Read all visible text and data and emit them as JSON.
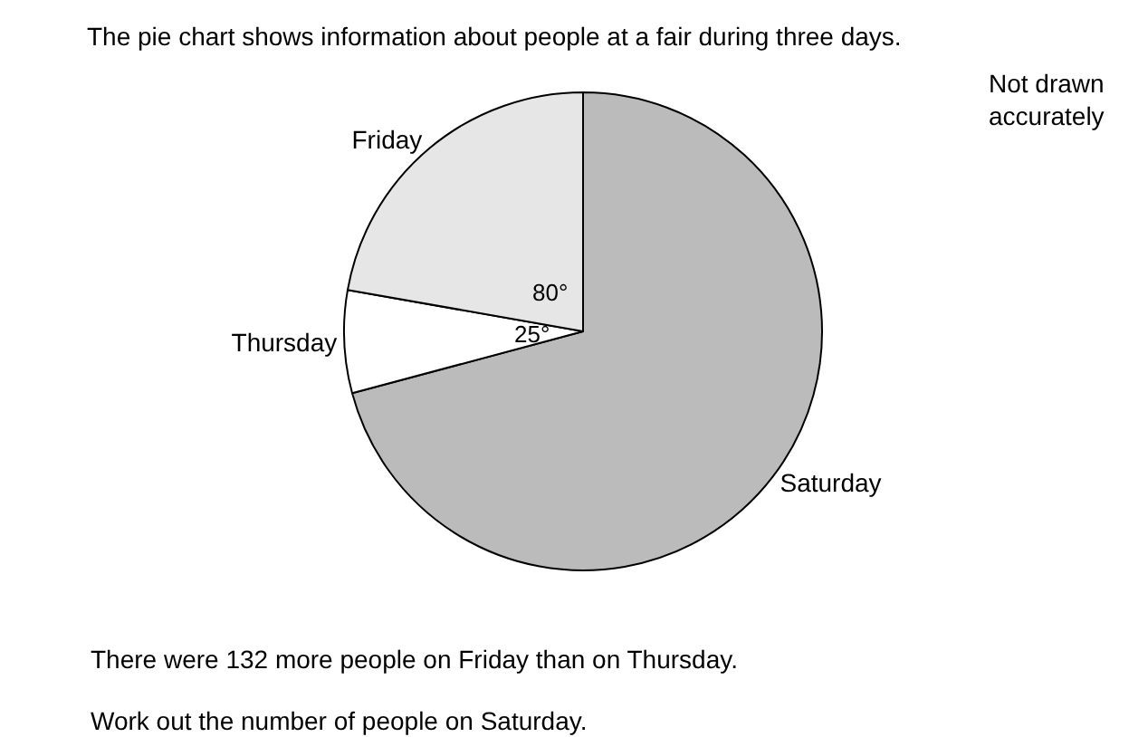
{
  "chart_data": {
    "type": "pie",
    "title": "The pie chart shows information about people at a fair during three days.",
    "categories": [
      "Saturday",
      "Thursday",
      "Friday"
    ],
    "values": [
      255,
      25,
      80
    ],
    "colors": [
      "#bbbbbb",
      "#ffffff",
      "#e6e6e6"
    ],
    "value_labels": [
      null,
      "25°",
      "80°"
    ],
    "legend": false,
    "annotations": [
      "Not drawn\naccurately",
      "There were 132 more people on Friday than on Thursday.",
      "Work out the number of people on Saturday."
    ]
  }
}
